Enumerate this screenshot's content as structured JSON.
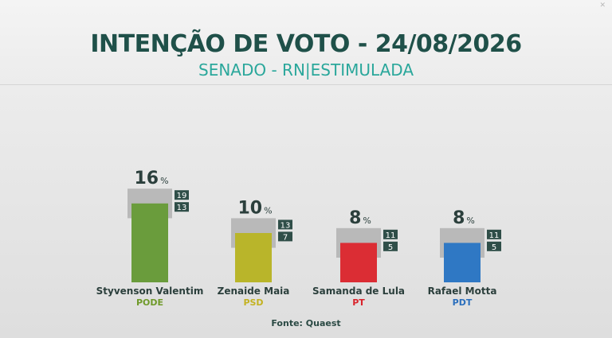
{
  "header": {
    "title": "INTENÇÃO DE VOTO - 24/08/2026",
    "subtitle": "SENADO - RN|ESTIMULADA"
  },
  "colors": {
    "title": "#1f5049",
    "subtitle": "#2aa79b",
    "range_box": "#b9b9b9",
    "range_label_bg": "#2f4e48"
  },
  "chart_data": {
    "type": "bar",
    "unit": "%",
    "categories": [
      "Styvenson Valentim",
      "Zenaide Maia",
      "Samanda de Lula",
      "Rafael Motta"
    ],
    "parties": [
      "PODE",
      "PSD",
      "PT",
      "PDT"
    ],
    "values": [
      16,
      10,
      8,
      8
    ],
    "range_high": [
      19,
      13,
      11,
      11
    ],
    "range_low": [
      13,
      7,
      5,
      5
    ],
    "bar_colors": [
      "#6a9c3c",
      "#b9b52a",
      "#db2d34",
      "#2f78c4"
    ],
    "party_colors": [
      "#6f9a2a",
      "#c3b221",
      "#d9232b",
      "#2b6fbd"
    ]
  },
  "source": "Fonte: Quaest",
  "watermark": "✕"
}
